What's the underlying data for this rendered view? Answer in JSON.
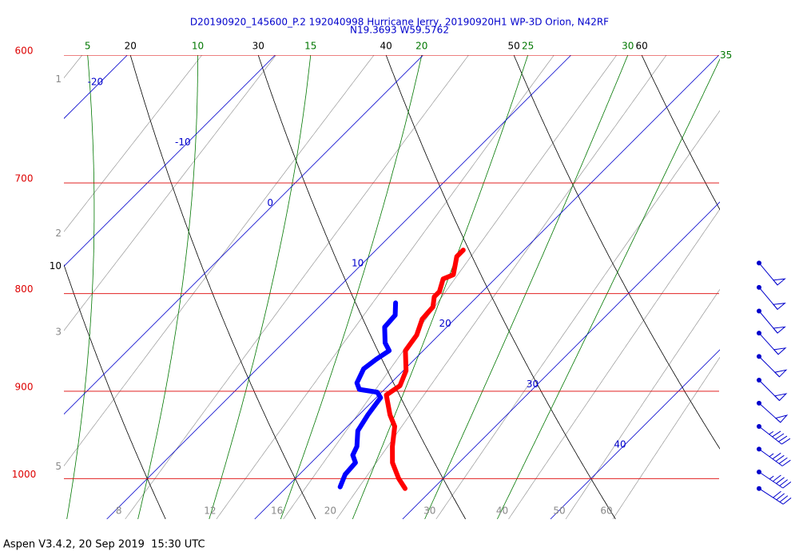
{
  "chart_data": {
    "type": "skewt",
    "title": "D20190920_145600_P.2 192040998 Hurricane Jerry, 20190920H1 WP-3D Orion, N42RF",
    "subtitle": "N19.3693 W59.5762",
    "footer": "Aspen V3.4.2, 20 Sep 2019  15:30 UTC",
    "ylim": [
      1050,
      600
    ],
    "yticks": [
      600,
      700,
      800,
      900,
      1000
    ],
    "log_y": true,
    "xlim": [
      7.1,
      51.4
    ],
    "isobar_color": "#dd0000",
    "isotherms": {
      "values": [
        -20,
        -10,
        0,
        10,
        20,
        30,
        40
      ],
      "color": "#0000cc"
    },
    "dry_adiabats": {
      "values": [
        10,
        20,
        30,
        40,
        50,
        60
      ],
      "color": "#000000"
    },
    "moist_adiabats": {
      "values": [
        5,
        10,
        15,
        20,
        25,
        30,
        35
      ],
      "color": "#007700"
    },
    "mixing_ratios": {
      "values": [
        1,
        2,
        3,
        5,
        8,
        12,
        16,
        20,
        30,
        40,
        50,
        60
      ],
      "color": "#888888"
    },
    "series": [
      {
        "color": "#ff0000",
        "pressure": [
          759,
          765,
          782,
          786,
          798,
          803,
          813,
          825,
          841,
          857,
          878,
          894,
          904,
          926,
          939,
          962,
          981,
          1000,
          1012
        ],
        "values": [
          15.9,
          15.9,
          16.9,
          16.5,
          17.1,
          17.1,
          17.7,
          17.8,
          18.5,
          18.8,
          20.2,
          20.8,
          20.5,
          22.1,
          23.2,
          24.4,
          25.5,
          27.0,
          28.1
        ]
      },
      {
        "color": "#0000ff",
        "pressure": [
          809,
          821,
          833,
          849,
          857,
          866,
          876,
          891,
          898,
          901,
          907,
          926,
          944,
          962,
          972,
          981,
          995,
          1010
        ],
        "values": [
          14.9,
          15.7,
          15.8,
          16.9,
          17.7,
          17.4,
          17.2,
          17.7,
          18.3,
          19.7,
          20.3,
          20.6,
          21.0,
          22.0,
          22.3,
          23.0,
          23.1,
          23.6
        ]
      }
    ],
    "winds": {
      "color": "#0000cc",
      "pressure": [
        771,
        794,
        817,
        839,
        863,
        888,
        913,
        939,
        965,
        992,
        1012
      ],
      "direction": [
        140,
        140,
        140,
        138,
        135,
        135,
        132,
        128,
        126,
        124,
        123
      ],
      "speed": [
        50,
        50,
        50,
        50,
        50,
        50,
        50,
        45,
        45,
        45,
        40
      ]
    }
  }
}
